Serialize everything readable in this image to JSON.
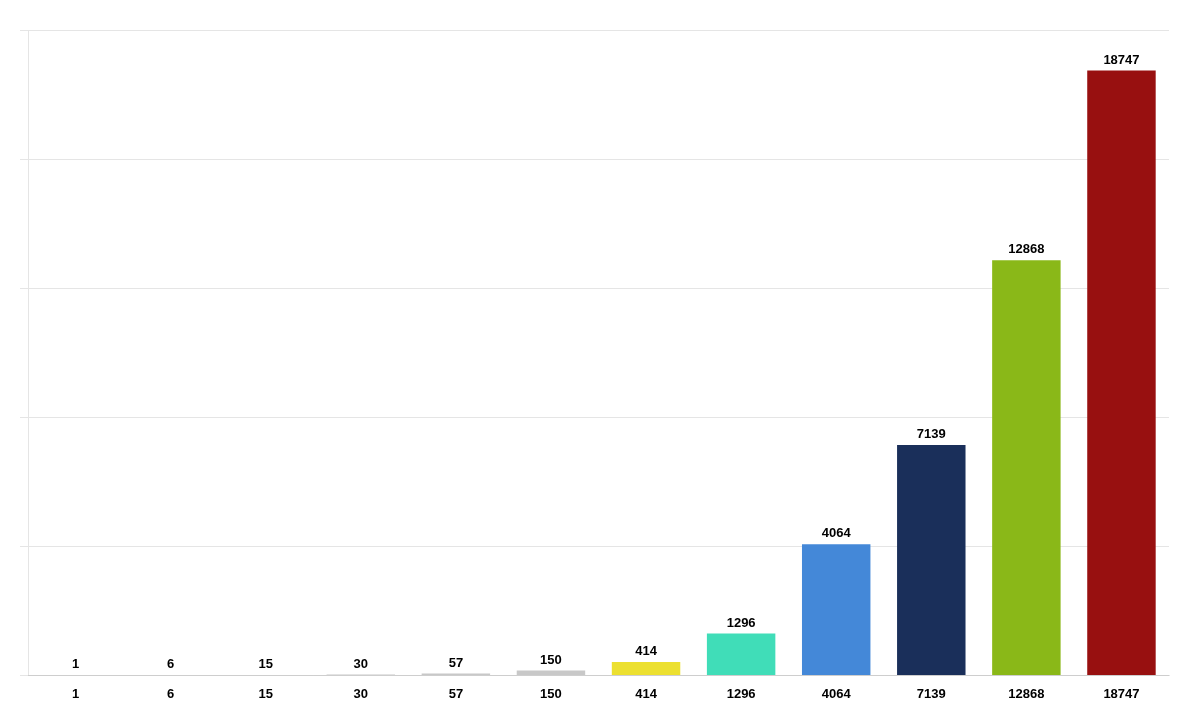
{
  "chart_data": {
    "type": "bar",
    "categories": [
      "1",
      "6",
      "15",
      "30",
      "57",
      "150",
      "414",
      "1296",
      "4064",
      "7139",
      "12868",
      "18747"
    ],
    "values": [
      1,
      6,
      15,
      30,
      57,
      150,
      414,
      1296,
      4064,
      7139,
      12868,
      18747
    ],
    "colors": [
      "#c8c8c8",
      "#c8c8c8",
      "#c8c8c8",
      "#c8c8c8",
      "#c8c8c8",
      "#c8c8c8",
      "#ece030",
      "#40ddb8",
      "#4488d8",
      "#1a2f5a",
      "#8ab818",
      "#981010"
    ],
    "ylim": [
      0,
      20000
    ],
    "yticks": [
      0,
      4000,
      8000,
      12000,
      16000,
      20000
    ],
    "grid": true,
    "data_labels": true,
    "tick_labels": "x"
  }
}
